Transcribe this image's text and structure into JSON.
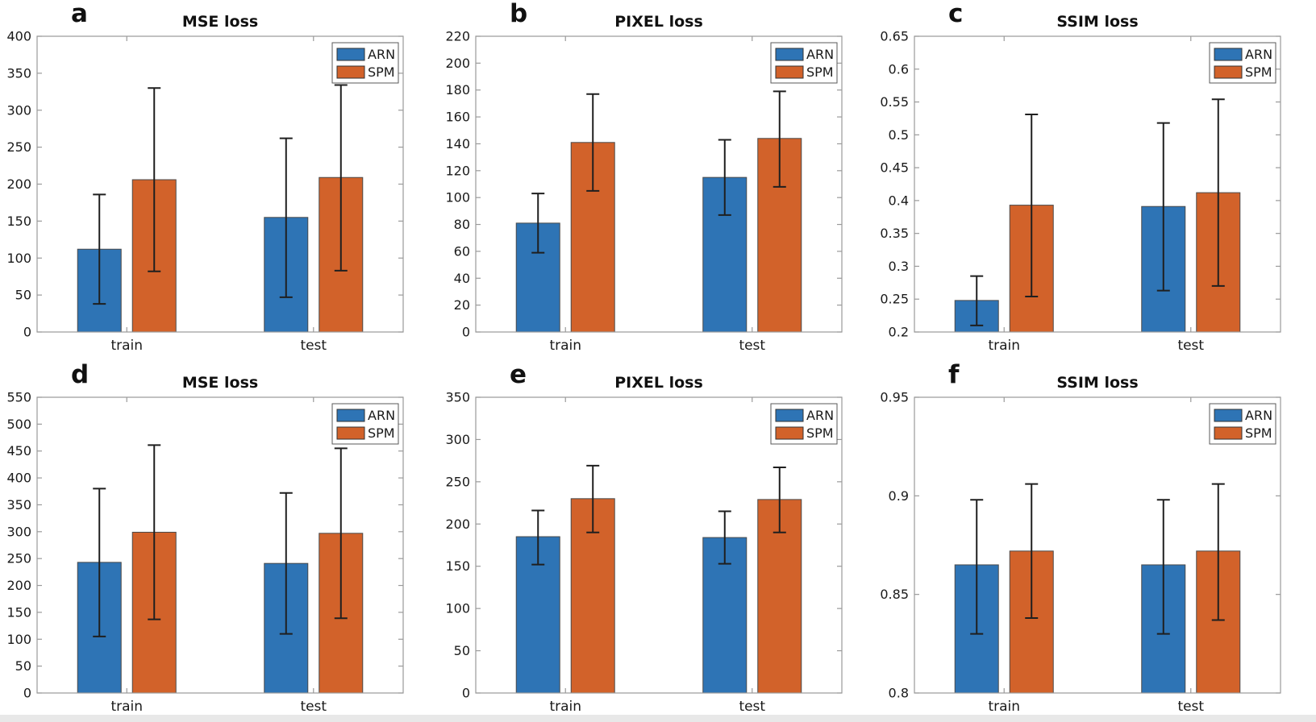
{
  "figure": {
    "background": "#ffffff",
    "bottom_strip_color": "#e8e8e8",
    "colors": {
      "arn": "#2E74B5",
      "spm": "#D2622A",
      "error": "#1f1f1f",
      "axis": "#9a9a9a",
      "bar_edge": "#4a4a4a",
      "text": "#1a1a1a"
    },
    "legend": {
      "entries": [
        {
          "label": "ARN",
          "color_key": "arn"
        },
        {
          "label": "SPM",
          "color_key": "spm"
        }
      ]
    }
  },
  "chart_data": [
    {
      "panel": "a",
      "type": "bar",
      "title": "MSE loss",
      "categories": [
        "train",
        "test"
      ],
      "ylim": [
        0,
        400
      ],
      "yticks": [
        0,
        50,
        100,
        150,
        200,
        250,
        300,
        350,
        400
      ],
      "series": [
        {
          "name": "ARN",
          "color_key": "arn",
          "values": [
            112,
            155
          ],
          "err_low": [
            38,
            47
          ],
          "err_high": [
            186,
            262
          ]
        },
        {
          "name": "SPM",
          "color_key": "spm",
          "values": [
            206,
            209
          ],
          "err_low": [
            82,
            83
          ],
          "err_high": [
            330,
            334
          ]
        }
      ]
    },
    {
      "panel": "b",
      "type": "bar",
      "title": "PIXEL loss",
      "categories": [
        "train",
        "test"
      ],
      "ylim": [
        0,
        220
      ],
      "yticks": [
        0,
        20,
        40,
        60,
        80,
        100,
        120,
        140,
        160,
        180,
        200,
        220
      ],
      "series": [
        {
          "name": "ARN",
          "color_key": "arn",
          "values": [
            81,
            115
          ],
          "err_low": [
            59,
            87
          ],
          "err_high": [
            103,
            143
          ]
        },
        {
          "name": "SPM",
          "color_key": "spm",
          "values": [
            141,
            144
          ],
          "err_low": [
            105,
            108
          ],
          "err_high": [
            177,
            179
          ]
        }
      ]
    },
    {
      "panel": "c",
      "type": "bar",
      "title": "SSIM loss",
      "categories": [
        "train",
        "test"
      ],
      "ylim": [
        0.2,
        0.65
      ],
      "yticks": [
        0.2,
        0.25,
        0.3,
        0.35,
        0.4,
        0.45,
        0.5,
        0.55,
        0.6,
        0.65
      ],
      "series": [
        {
          "name": "ARN",
          "color_key": "arn",
          "values": [
            0.248,
            0.391
          ],
          "err_low": [
            0.21,
            0.263
          ],
          "err_high": [
            0.285,
            0.518
          ]
        },
        {
          "name": "SPM",
          "color_key": "spm",
          "values": [
            0.393,
            0.412
          ],
          "err_low": [
            0.254,
            0.27
          ],
          "err_high": [
            0.531,
            0.554
          ]
        }
      ]
    },
    {
      "panel": "d",
      "type": "bar",
      "title": "MSE loss",
      "categories": [
        "train",
        "test"
      ],
      "ylim": [
        0,
        550
      ],
      "yticks": [
        0,
        50,
        100,
        150,
        200,
        250,
        300,
        350,
        400,
        450,
        500,
        550
      ],
      "series": [
        {
          "name": "ARN",
          "color_key": "arn",
          "values": [
            243,
            241
          ],
          "err_low": [
            105,
            110
          ],
          "err_high": [
            380,
            372
          ]
        },
        {
          "name": "SPM",
          "color_key": "spm",
          "values": [
            299,
            297
          ],
          "err_low": [
            137,
            139
          ],
          "err_high": [
            461,
            455
          ]
        }
      ]
    },
    {
      "panel": "e",
      "type": "bar",
      "title": "PIXEL loss",
      "categories": [
        "train",
        "test"
      ],
      "ylim": [
        0,
        350
      ],
      "yticks": [
        0,
        50,
        100,
        150,
        200,
        250,
        300,
        350
      ],
      "series": [
        {
          "name": "ARN",
          "color_key": "arn",
          "values": [
            185,
            184
          ],
          "err_low": [
            152,
            153
          ],
          "err_high": [
            216,
            215
          ]
        },
        {
          "name": "SPM",
          "color_key": "spm",
          "values": [
            230,
            229
          ],
          "err_low": [
            190,
            190
          ],
          "err_high": [
            269,
            267
          ]
        }
      ]
    },
    {
      "panel": "f",
      "type": "bar",
      "title": "SSIM loss",
      "categories": [
        "train",
        "test"
      ],
      "ylim": [
        0.8,
        0.95
      ],
      "yticks": [
        0.8,
        0.85,
        0.9,
        0.95
      ],
      "series": [
        {
          "name": "ARN",
          "color_key": "arn",
          "values": [
            0.865,
            0.865
          ],
          "err_low": [
            0.83,
            0.83
          ],
          "err_high": [
            0.898,
            0.898
          ]
        },
        {
          "name": "SPM",
          "color_key": "spm",
          "values": [
            0.872,
            0.872
          ],
          "err_low": [
            0.838,
            0.837
          ],
          "err_high": [
            0.906,
            0.906
          ]
        }
      ]
    }
  ]
}
